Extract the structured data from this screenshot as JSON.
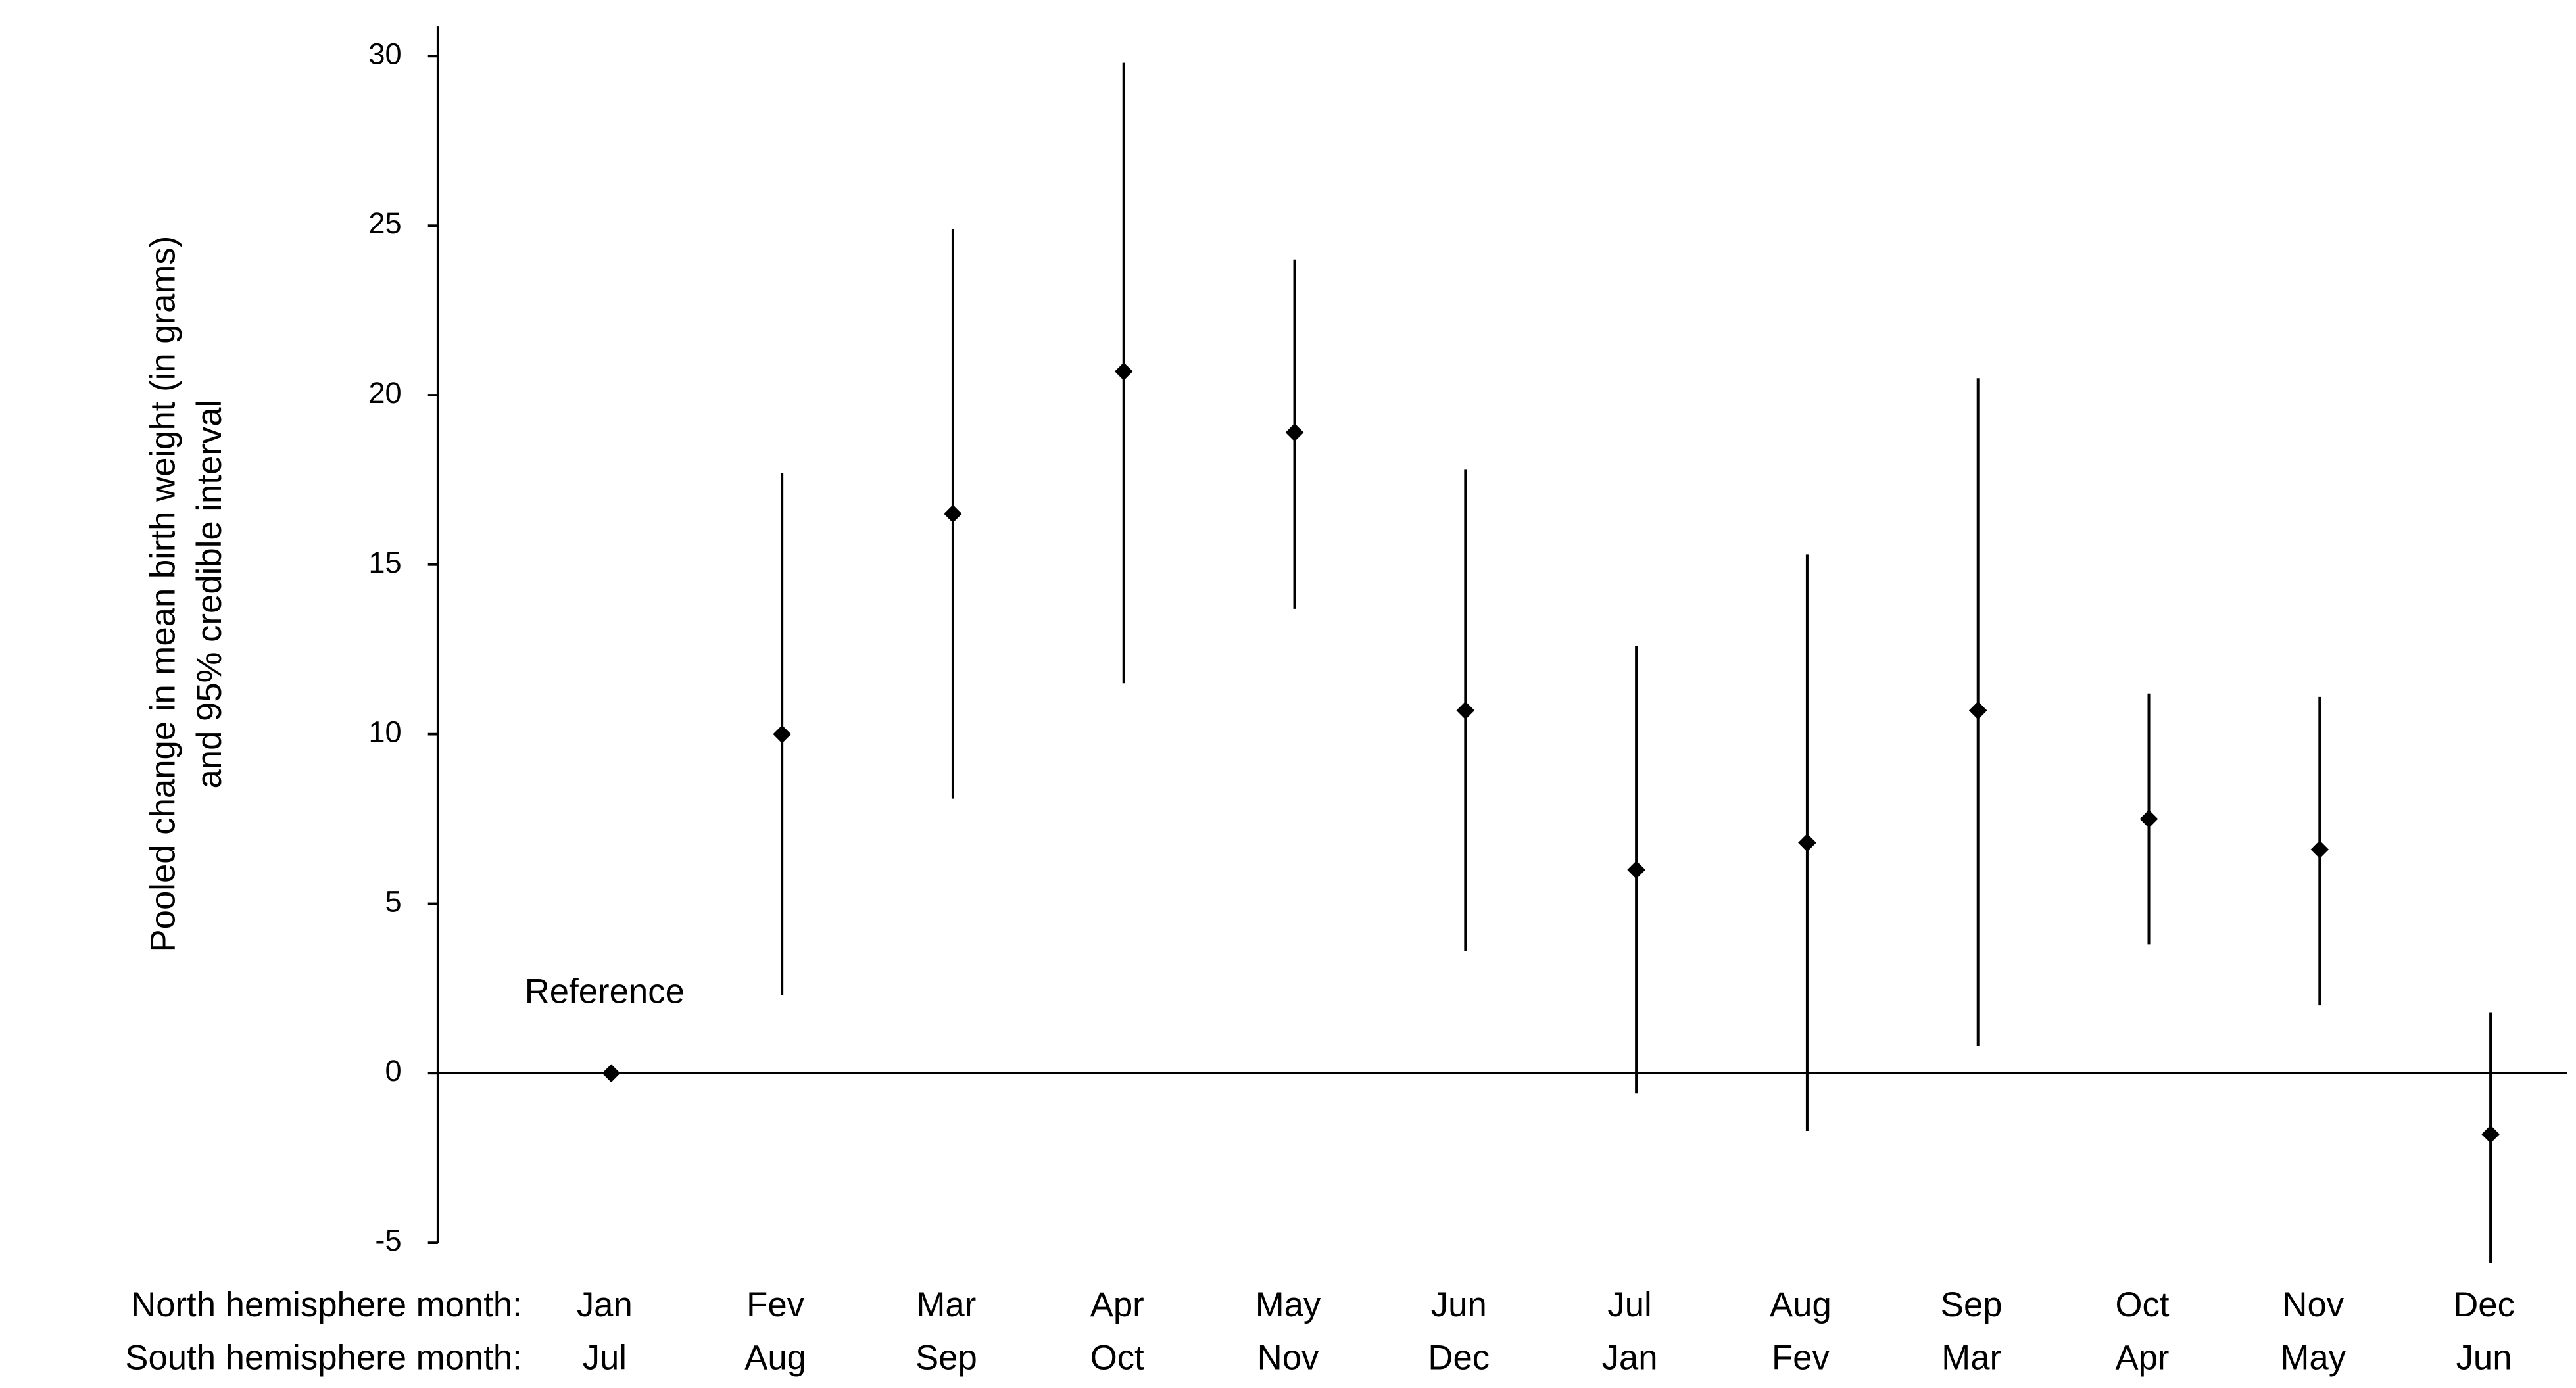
{
  "chart_data": {
    "type": "errorbar",
    "y_label": [
      "Pooled change in mean birth weight (in grams)",
      "and 95% credible interval"
    ],
    "row_labels": [
      "North hemisphere month:",
      "South hemisphere month:"
    ],
    "categories": [
      "Jan",
      "Fev",
      "Mar",
      "Apr",
      "May",
      "Jun",
      "Jul",
      "Aug",
      "Sep",
      "Oct",
      "Nov",
      "Dec"
    ],
    "categories_south": [
      "Jul",
      "Aug",
      "Sep",
      "Oct",
      "Nov",
      "Dec",
      "Jan",
      "Fev",
      "Mar",
      "Apr",
      "May",
      "Jun"
    ],
    "annotation": "Reference",
    "color": "#000000",
    "series": [
      {
        "values": [
          0,
          10,
          16.5,
          20.7,
          18.9,
          10.7,
          6,
          6.8,
          10.7,
          7.5,
          6.6,
          -1.8
        ],
        "lower": [
          null,
          2.3,
          8.1,
          11.5,
          13.7,
          3.6,
          -0.6,
          -1.7,
          0.8,
          3.8,
          2,
          -5.6
        ],
        "upper": [
          null,
          17.7,
          24.9,
          29.8,
          24,
          17.8,
          12.6,
          15.3,
          20.5,
          11.2,
          11.1,
          1.8
        ]
      }
    ],
    "ylim": [
      -5,
      30
    ],
    "yticks": [
      -5,
      0,
      5,
      10,
      15,
      20,
      25,
      30
    ]
  }
}
